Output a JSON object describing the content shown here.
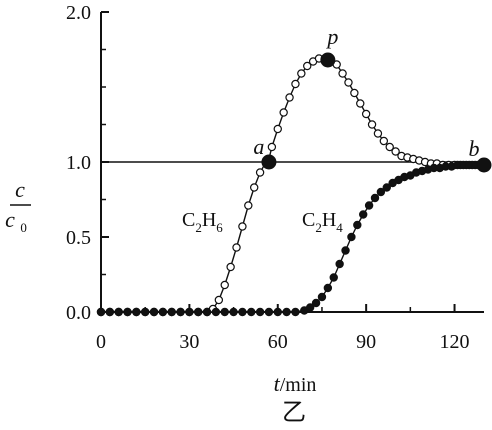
{
  "chart_data": {
    "type": "line",
    "x_axis_label_italic": "t",
    "x_axis_label_unit": "/min",
    "y_axis_label_numerator": "c",
    "y_axis_label_denominator_base": "c",
    "y_axis_label_denominator_sub": "0",
    "x_ticks": [
      "0",
      "30",
      "60",
      "90",
      "120"
    ],
    "y_ticks": [
      "0.0",
      "0.5",
      "1.0",
      "2.0"
    ],
    "xlim": [
      0,
      130
    ],
    "ylim": [
      0,
      2
    ],
    "reference_line_y": 1.0,
    "figure_caption": "乙",
    "series": [
      {
        "name": "C2H6",
        "label_base": "C",
        "label_sub1": "2",
        "label_h": "H",
        "label_sub2": "6",
        "marker": "open-circle",
        "x": [
          0,
          3,
          6,
          9,
          12,
          15,
          18,
          21,
          24,
          27,
          30,
          33,
          36,
          38,
          40,
          42,
          44,
          46,
          48,
          50,
          52,
          54,
          56,
          57,
          58,
          60,
          62,
          64,
          66,
          68,
          70,
          72,
          74,
          76,
          78,
          80,
          82,
          84,
          86,
          88,
          90,
          92,
          94,
          96,
          98,
          100,
          102,
          104,
          106,
          108,
          110,
          112,
          114,
          116,
          118,
          120,
          122,
          124,
          126,
          128,
          130
        ],
        "y": [
          0,
          0,
          0,
          0,
          0,
          0,
          0,
          0,
          0,
          0,
          0,
          0,
          0,
          0.02,
          0.08,
          0.18,
          0.3,
          0.43,
          0.57,
          0.71,
          0.83,
          0.93,
          1.0,
          1.02,
          1.1,
          1.22,
          1.33,
          1.43,
          1.52,
          1.59,
          1.64,
          1.67,
          1.69,
          1.69,
          1.68,
          1.65,
          1.59,
          1.53,
          1.46,
          1.39,
          1.32,
          1.25,
          1.19,
          1.14,
          1.1,
          1.07,
          1.04,
          1.03,
          1.02,
          1.01,
          1.0,
          0.99,
          0.99,
          0.98,
          0.98,
          0.98,
          0.98,
          0.98,
          0.98,
          0.98,
          0.98
        ]
      },
      {
        "name": "C2H4",
        "label_base": "C",
        "label_sub1": "2",
        "label_h": "H",
        "label_sub2": "4",
        "marker": "filled-circle",
        "x": [
          0,
          3,
          6,
          9,
          12,
          15,
          18,
          21,
          24,
          27,
          30,
          33,
          36,
          39,
          42,
          45,
          48,
          51,
          54,
          57,
          60,
          63,
          66,
          69,
          71,
          73,
          75,
          77,
          79,
          81,
          83,
          85,
          87,
          89,
          91,
          93,
          95,
          97,
          99,
          101,
          103,
          105,
          107,
          109,
          111,
          113,
          115,
          117,
          119,
          121,
          123,
          125,
          127,
          130
        ],
        "y": [
          0,
          0,
          0,
          0,
          0,
          0,
          0,
          0,
          0,
          0,
          0,
          0,
          0,
          0,
          0,
          0,
          0,
          0,
          0,
          0,
          0,
          0,
          0,
          0.01,
          0.03,
          0.06,
          0.1,
          0.16,
          0.23,
          0.32,
          0.41,
          0.5,
          0.58,
          0.65,
          0.71,
          0.76,
          0.8,
          0.83,
          0.86,
          0.88,
          0.9,
          0.91,
          0.93,
          0.94,
          0.95,
          0.96,
          0.96,
          0.97,
          0.97,
          0.98,
          0.98,
          0.98,
          0.98,
          0.98
        ]
      }
    ],
    "points": [
      {
        "label": "a",
        "x": 57,
        "y": 1.0
      },
      {
        "label": "p",
        "x": 77,
        "y": 1.68
      },
      {
        "label": "b",
        "x": 130,
        "y": 0.98
      }
    ]
  }
}
